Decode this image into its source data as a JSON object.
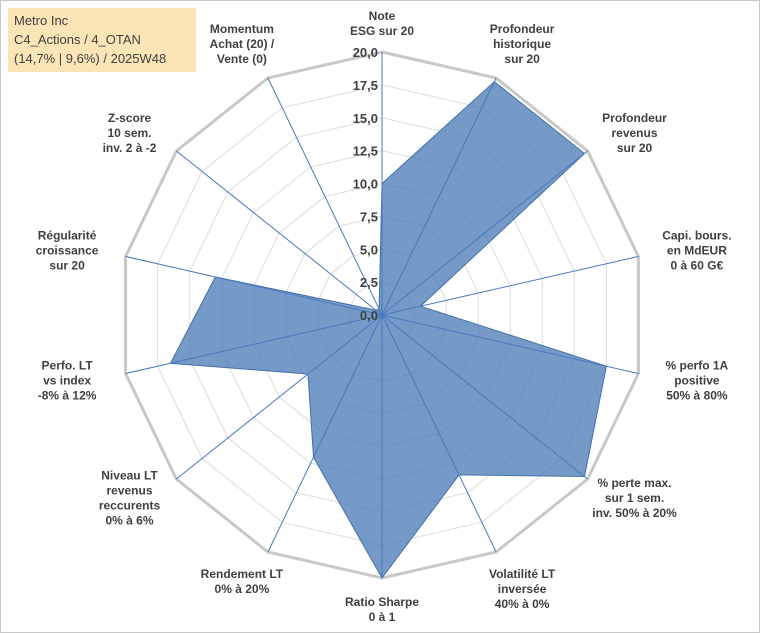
{
  "info": {
    "company": "Metro Inc",
    "portfolio": "C4_Actions / 4_OTAN",
    "perf_week": "(14,7% | 9,6%) / 2025W48"
  },
  "chart_data": {
    "type": "radar",
    "title": "",
    "rmax": 20,
    "tick_labels": [
      "0,0",
      "2,5",
      "5,0",
      "7,5",
      "10,0",
      "12,5",
      "15,0",
      "17,5",
      "20,0"
    ],
    "series": [
      {
        "name": "Metro Inc",
        "color": "#4f7eb8",
        "values": [
          10.0,
          19.7,
          19.7,
          3.0,
          17.5,
          19.7,
          13.5,
          20.0,
          12.0,
          7.2,
          16.5,
          13.0,
          0.6,
          0.5
        ]
      }
    ],
    "axes": [
      {
        "lines": [
          "Note",
          "ESG sur 20"
        ],
        "anchor": "middle"
      },
      {
        "lines": [
          "Profondeur",
          "historique",
          "sur 20"
        ],
        "anchor": "middle"
      },
      {
        "lines": [
          "Profondeur",
          "revenus",
          "sur 20"
        ],
        "anchor": "middle"
      },
      {
        "lines": [
          "Capi. bours.",
          "en MdEUR",
          "0 à 60 G€"
        ],
        "anchor": "middle"
      },
      {
        "lines": [
          "% perfo 1A",
          "positive",
          "50% à 80%"
        ],
        "anchor": "middle"
      },
      {
        "lines": [
          "% perte max.",
          "sur 1 sem.",
          "inv. 50% à 20%"
        ],
        "anchor": "middle"
      },
      {
        "lines": [
          "Volatilité LT",
          "inversée",
          "40% à 0%"
        ],
        "anchor": "middle"
      },
      {
        "lines": [
          "Ratio Sharpe",
          "0 à 1"
        ],
        "anchor": "middle"
      },
      {
        "lines": [
          "Rendement LT",
          "0% à 20%"
        ],
        "anchor": "middle"
      },
      {
        "lines": [
          "Niveau LT",
          "revenus",
          "reccurents",
          "0% à 6%"
        ],
        "anchor": "middle"
      },
      {
        "lines": [
          "Perfo. LT",
          "vs index",
          "-8% à 12%"
        ],
        "anchor": "middle"
      },
      {
        "lines": [
          "Régularité",
          "croissance",
          "sur 20"
        ],
        "anchor": "middle"
      },
      {
        "lines": [
          "Z-score",
          "10 sem.",
          "inv. 2 à -2"
        ],
        "anchor": "middle"
      },
      {
        "lines": [
          "Momentum",
          "Achat (20) /",
          "Vente (0)"
        ],
        "anchor": "middle"
      }
    ]
  }
}
